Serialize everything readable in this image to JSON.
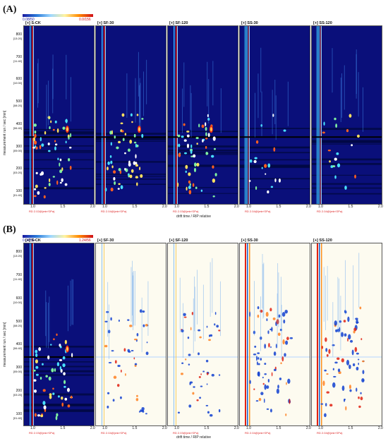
{
  "section_a": {
    "label": "(A)",
    "scale_min": "0.08/50",
    "scale_max": "0.0/156",
    "samples": [
      {
        "title": "[+] S-CK",
        "subtitle": "SS-CK",
        "xaxis_label": "RD 2.02@(min*2Pa)"
      },
      {
        "title": "[+] SF-30",
        "subtitle": "SF-30",
        "xaxis_label": "RD 2.04@(min*2Pa)"
      },
      {
        "title": "[+] SF-120",
        "subtitle": "SF-120",
        "xaxis_label": "RD 2.03@(min*2Pa)"
      },
      {
        "title": "[+] SS-30",
        "subtitle": "SS-30",
        "xaxis_label": "RD 2.04@(min*2Pa)"
      },
      {
        "title": "[+] SS-120",
        "subtitle": "SS-120",
        "xaxis_label": "RD 2.04@(min*2Pa)"
      }
    ],
    "yaxis_title": "measurement run / sec [min]",
    "yticks": [
      {
        "value": "800",
        "sub": "[13:20]"
      },
      {
        "value": "700",
        "sub": "[11:40]"
      },
      {
        "value": "600",
        "sub": "[10:00]"
      },
      {
        "value": "500",
        "sub": "[08:20]"
      },
      {
        "value": "400",
        "sub": "[06:40]"
      },
      {
        "value": "300",
        "sub": "[05:00]"
      },
      {
        "value": "200",
        "sub": "[03:20]"
      },
      {
        "value": "100",
        "sub": "[01:40]"
      }
    ],
    "xticks": [
      "1.0",
      "1.5",
      "2.0"
    ],
    "xaxis_title": "drift time / RIP relative"
  },
  "section_b": {
    "label": "(B)",
    "scale_min": "0.08/50",
    "scale_max": "1.24/56",
    "samples": [
      {
        "title": "[+] S-CK",
        "xaxis_label": "RD 2.03@(min*2Pa)"
      },
      {
        "title": "[+] SF-30",
        "xaxis_label": "RD 2.04@(min*2Pa)"
      },
      {
        "title": "[+] SF-120",
        "xaxis_label": "RD 2.03@(min*2Pa)"
      },
      {
        "title": "[+] SS-30",
        "xaxis_label": "RD 2.04@(min*2Pa)"
      },
      {
        "title": "[+] SS-120",
        "xaxis_label": "RD 2.04@(min*2Pa)"
      }
    ],
    "yaxis_title": "measurement run / sec [min]",
    "yticks": [
      {
        "value": "800",
        "sub": "[13:20]"
      },
      {
        "value": "700",
        "sub": "[11:40]"
      },
      {
        "value": "600",
        "sub": "[10:00]"
      },
      {
        "value": "500",
        "sub": "[08:20]"
      },
      {
        "value": "400",
        "sub": "[06:40]"
      },
      {
        "value": "300",
        "sub": "[05:00]"
      },
      {
        "value": "200",
        "sub": "[03:20]"
      },
      {
        "value": "100",
        "sub": "[01:40]"
      }
    ],
    "xticks": [
      "1.0",
      "1.5",
      "2.0"
    ],
    "xaxis_title": "drift time / RIP relative"
  },
  "colors": {
    "background_dark": "#0a0f7a",
    "difference_bg": "#fdfbf0",
    "rip_red": "#e02010",
    "peak_blue": "#1040d0"
  }
}
